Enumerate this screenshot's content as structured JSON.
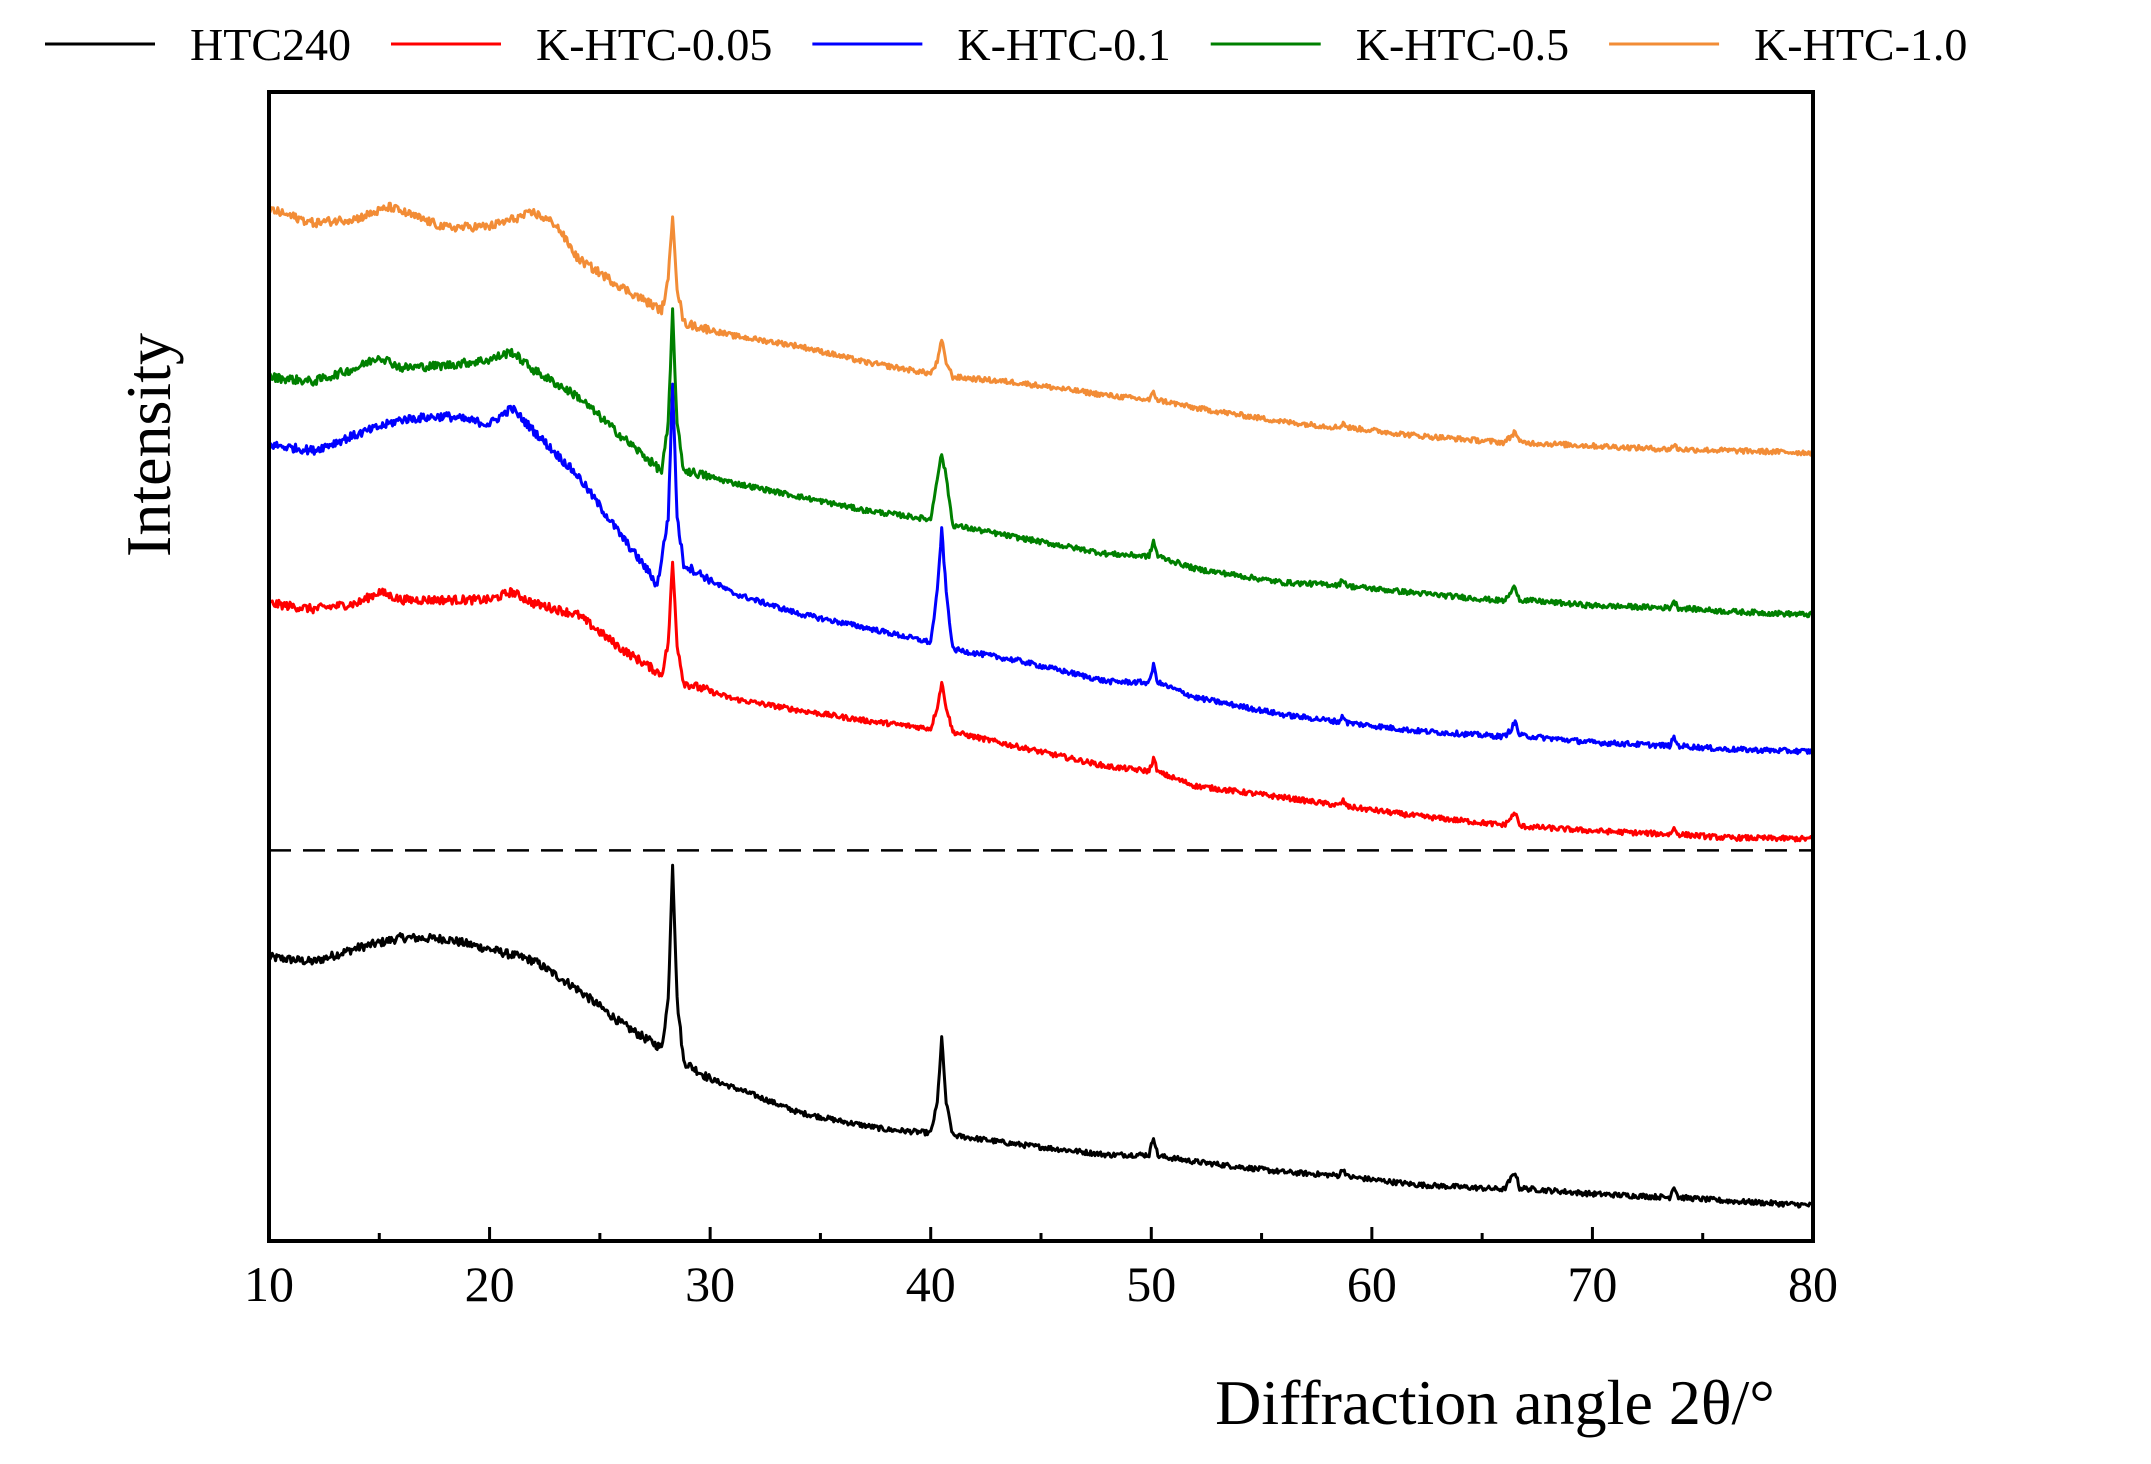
{
  "chart_data": {
    "type": "line",
    "title": "",
    "xlabel": "Diffraction angle 2θ/°",
    "ylabel": "Intensity",
    "xlim": [
      10,
      80
    ],
    "ylim": [
      0,
      100
    ],
    "x_ticks": [
      10,
      20,
      30,
      40,
      50,
      60,
      70,
      80
    ],
    "y_ticks_shown": false,
    "legend_position": "top",
    "separator_line": {
      "y": 34,
      "style": "dashed",
      "color": "#000000"
    },
    "series": [
      {
        "name": "HTC240",
        "color": "#000000",
        "x": [
          10,
          12,
          14,
          16,
          18,
          20,
          22,
          24,
          26,
          27,
          27.8,
          28.1,
          28.3,
          28.5,
          28.8,
          30,
          32,
          34,
          36,
          38,
          40,
          40.3,
          40.5,
          40.7,
          41,
          44,
          48,
          49.9,
          50.1,
          50.3,
          52,
          56,
          58.5,
          58.7,
          58.9,
          62,
          66,
          66.3,
          66.5,
          66.7,
          70,
          73.5,
          73.7,
          73.9,
          76,
          80
        ],
        "y": [
          24.7,
          24.3,
          25.5,
          26.4,
          26.3,
          25.4,
          24.4,
          21.9,
          18.9,
          17.7,
          16.8,
          21.0,
          33.0,
          21.0,
          15.6,
          14.1,
          12.7,
          11.2,
          10.4,
          9.7,
          9.4,
          12.0,
          17.7,
          12.0,
          9.2,
          8.4,
          7.5,
          7.5,
          9.1,
          7.4,
          6.9,
          6.0,
          5.7,
          6.3,
          5.6,
          4.9,
          4.5,
          5.4,
          6.0,
          4.6,
          4.1,
          3.8,
          4.8,
          3.8,
          3.5,
          3.1
        ]
      },
      {
        "name": "K-HTC-0.05",
        "color": "#ff0000",
        "x": [
          10,
          12,
          14,
          15,
          16,
          18,
          20,
          21,
          22,
          24,
          26,
          27.8,
          28.1,
          28.3,
          28.5,
          28.8,
          31,
          34,
          37,
          40,
          40.3,
          40.5,
          40.7,
          41,
          44,
          48,
          49.9,
          50.1,
          50.3,
          52,
          56,
          58.5,
          58.7,
          58.9,
          62,
          66,
          66.3,
          66.5,
          66.7,
          70,
          73.5,
          73.7,
          73.9,
          76,
          80
        ],
        "y": [
          55.5,
          55.0,
          55.5,
          56.5,
          55.8,
          55.8,
          55.8,
          56.5,
          55.5,
          54.5,
          51.5,
          49.3,
          52.0,
          59.1,
          52.0,
          48.6,
          47.2,
          46.2,
          45.3,
          44.6,
          46.5,
          48.6,
          46.5,
          44.3,
          43.0,
          41.3,
          40.9,
          42.0,
          40.8,
          39.6,
          38.6,
          37.9,
          38.3,
          37.8,
          37.0,
          36.2,
          36.8,
          37.3,
          36.1,
          35.7,
          35.4,
          35.9,
          35.4,
          35.1,
          35.0
        ]
      },
      {
        "name": "K-HTC-0.1",
        "color": "#0000ff",
        "x": [
          10,
          12,
          14,
          16,
          18,
          20,
          21,
          22,
          24,
          26,
          27.3,
          27.6,
          28.1,
          28.3,
          28.5,
          28.8,
          31,
          34,
          37,
          40,
          40.3,
          40.5,
          40.7,
          41,
          44,
          48,
          49.9,
          50.1,
          50.3,
          52,
          56,
          58.5,
          58.7,
          58.9,
          62,
          66,
          66.3,
          66.5,
          66.7,
          70,
          73.5,
          73.7,
          73.9,
          76,
          80
        ],
        "y": [
          69.3,
          68.8,
          70.2,
          71.5,
          71.8,
          71.1,
          72.5,
          70.5,
          66.6,
          61.3,
          58.0,
          57.0,
          63.0,
          74.6,
          63.0,
          58.9,
          56.4,
          54.6,
          53.4,
          52.1,
          56.5,
          62.0,
          56.5,
          51.5,
          50.5,
          48.7,
          48.6,
          50.1,
          48.6,
          47.3,
          45.8,
          45.2,
          45.7,
          45.1,
          44.4,
          43.9,
          44.5,
          45.2,
          44.0,
          43.4,
          43.1,
          43.8,
          43.1,
          42.8,
          42.6
        ]
      },
      {
        "name": "K-HTC-0.5",
        "color": "#008000",
        "x": [
          10,
          12,
          14,
          15,
          16,
          18,
          20,
          21,
          22,
          24,
          26,
          27.8,
          28.1,
          28.3,
          28.5,
          28.8,
          31,
          34,
          37,
          40,
          40.3,
          40.5,
          40.7,
          41,
          44,
          48,
          49.9,
          50.1,
          50.3,
          52,
          56,
          58.5,
          58.7,
          58.9,
          62,
          66,
          66.3,
          66.5,
          66.7,
          70,
          73.5,
          73.7,
          73.9,
          76,
          80
        ],
        "y": [
          75.2,
          74.8,
          76.0,
          77.0,
          76.0,
          76.2,
          76.7,
          77.4,
          75.8,
          73.5,
          70.0,
          67.0,
          71.0,
          80.9,
          71.0,
          67.1,
          66.0,
          64.8,
          63.6,
          62.8,
          66.5,
          68.5,
          66.5,
          62.3,
          61.2,
          59.8,
          59.6,
          60.9,
          59.6,
          58.5,
          57.3,
          57.1,
          57.6,
          57.0,
          56.4,
          55.7,
          56.4,
          57.0,
          55.8,
          55.3,
          55.1,
          55.7,
          55.1,
          54.8,
          54.5
        ]
      },
      {
        "name": "K-HTC-1.0",
        "color": "#f28c36",
        "x": [
          10,
          12,
          14,
          15.5,
          16,
          18,
          20,
          22,
          23,
          24,
          26,
          27.8,
          28.1,
          28.3,
          28.5,
          28.8,
          31,
          34,
          37,
          40,
          40.3,
          40.5,
          40.7,
          41,
          44,
          48,
          49.9,
          50.1,
          50.3,
          52,
          56,
          58.5,
          58.7,
          58.9,
          62,
          66,
          66.3,
          66.5,
          66.7,
          70,
          73.5,
          73.7,
          73.9,
          76,
          80
        ],
        "y": [
          89.8,
          88.6,
          89.0,
          90.0,
          89.6,
          88.2,
          88.3,
          89.5,
          88.5,
          85.5,
          83.0,
          81.0,
          83.5,
          89.5,
          83.0,
          79.9,
          78.8,
          77.9,
          76.5,
          75.5,
          76.5,
          78.4,
          76.5,
          75.2,
          74.7,
          73.6,
          73.2,
          73.8,
          73.2,
          72.5,
          71.3,
          70.8,
          71.2,
          70.8,
          70.1,
          69.5,
          70.0,
          70.5,
          69.5,
          69.2,
          68.9,
          69.3,
          68.9,
          68.8,
          68.6
        ]
      }
    ]
  }
}
